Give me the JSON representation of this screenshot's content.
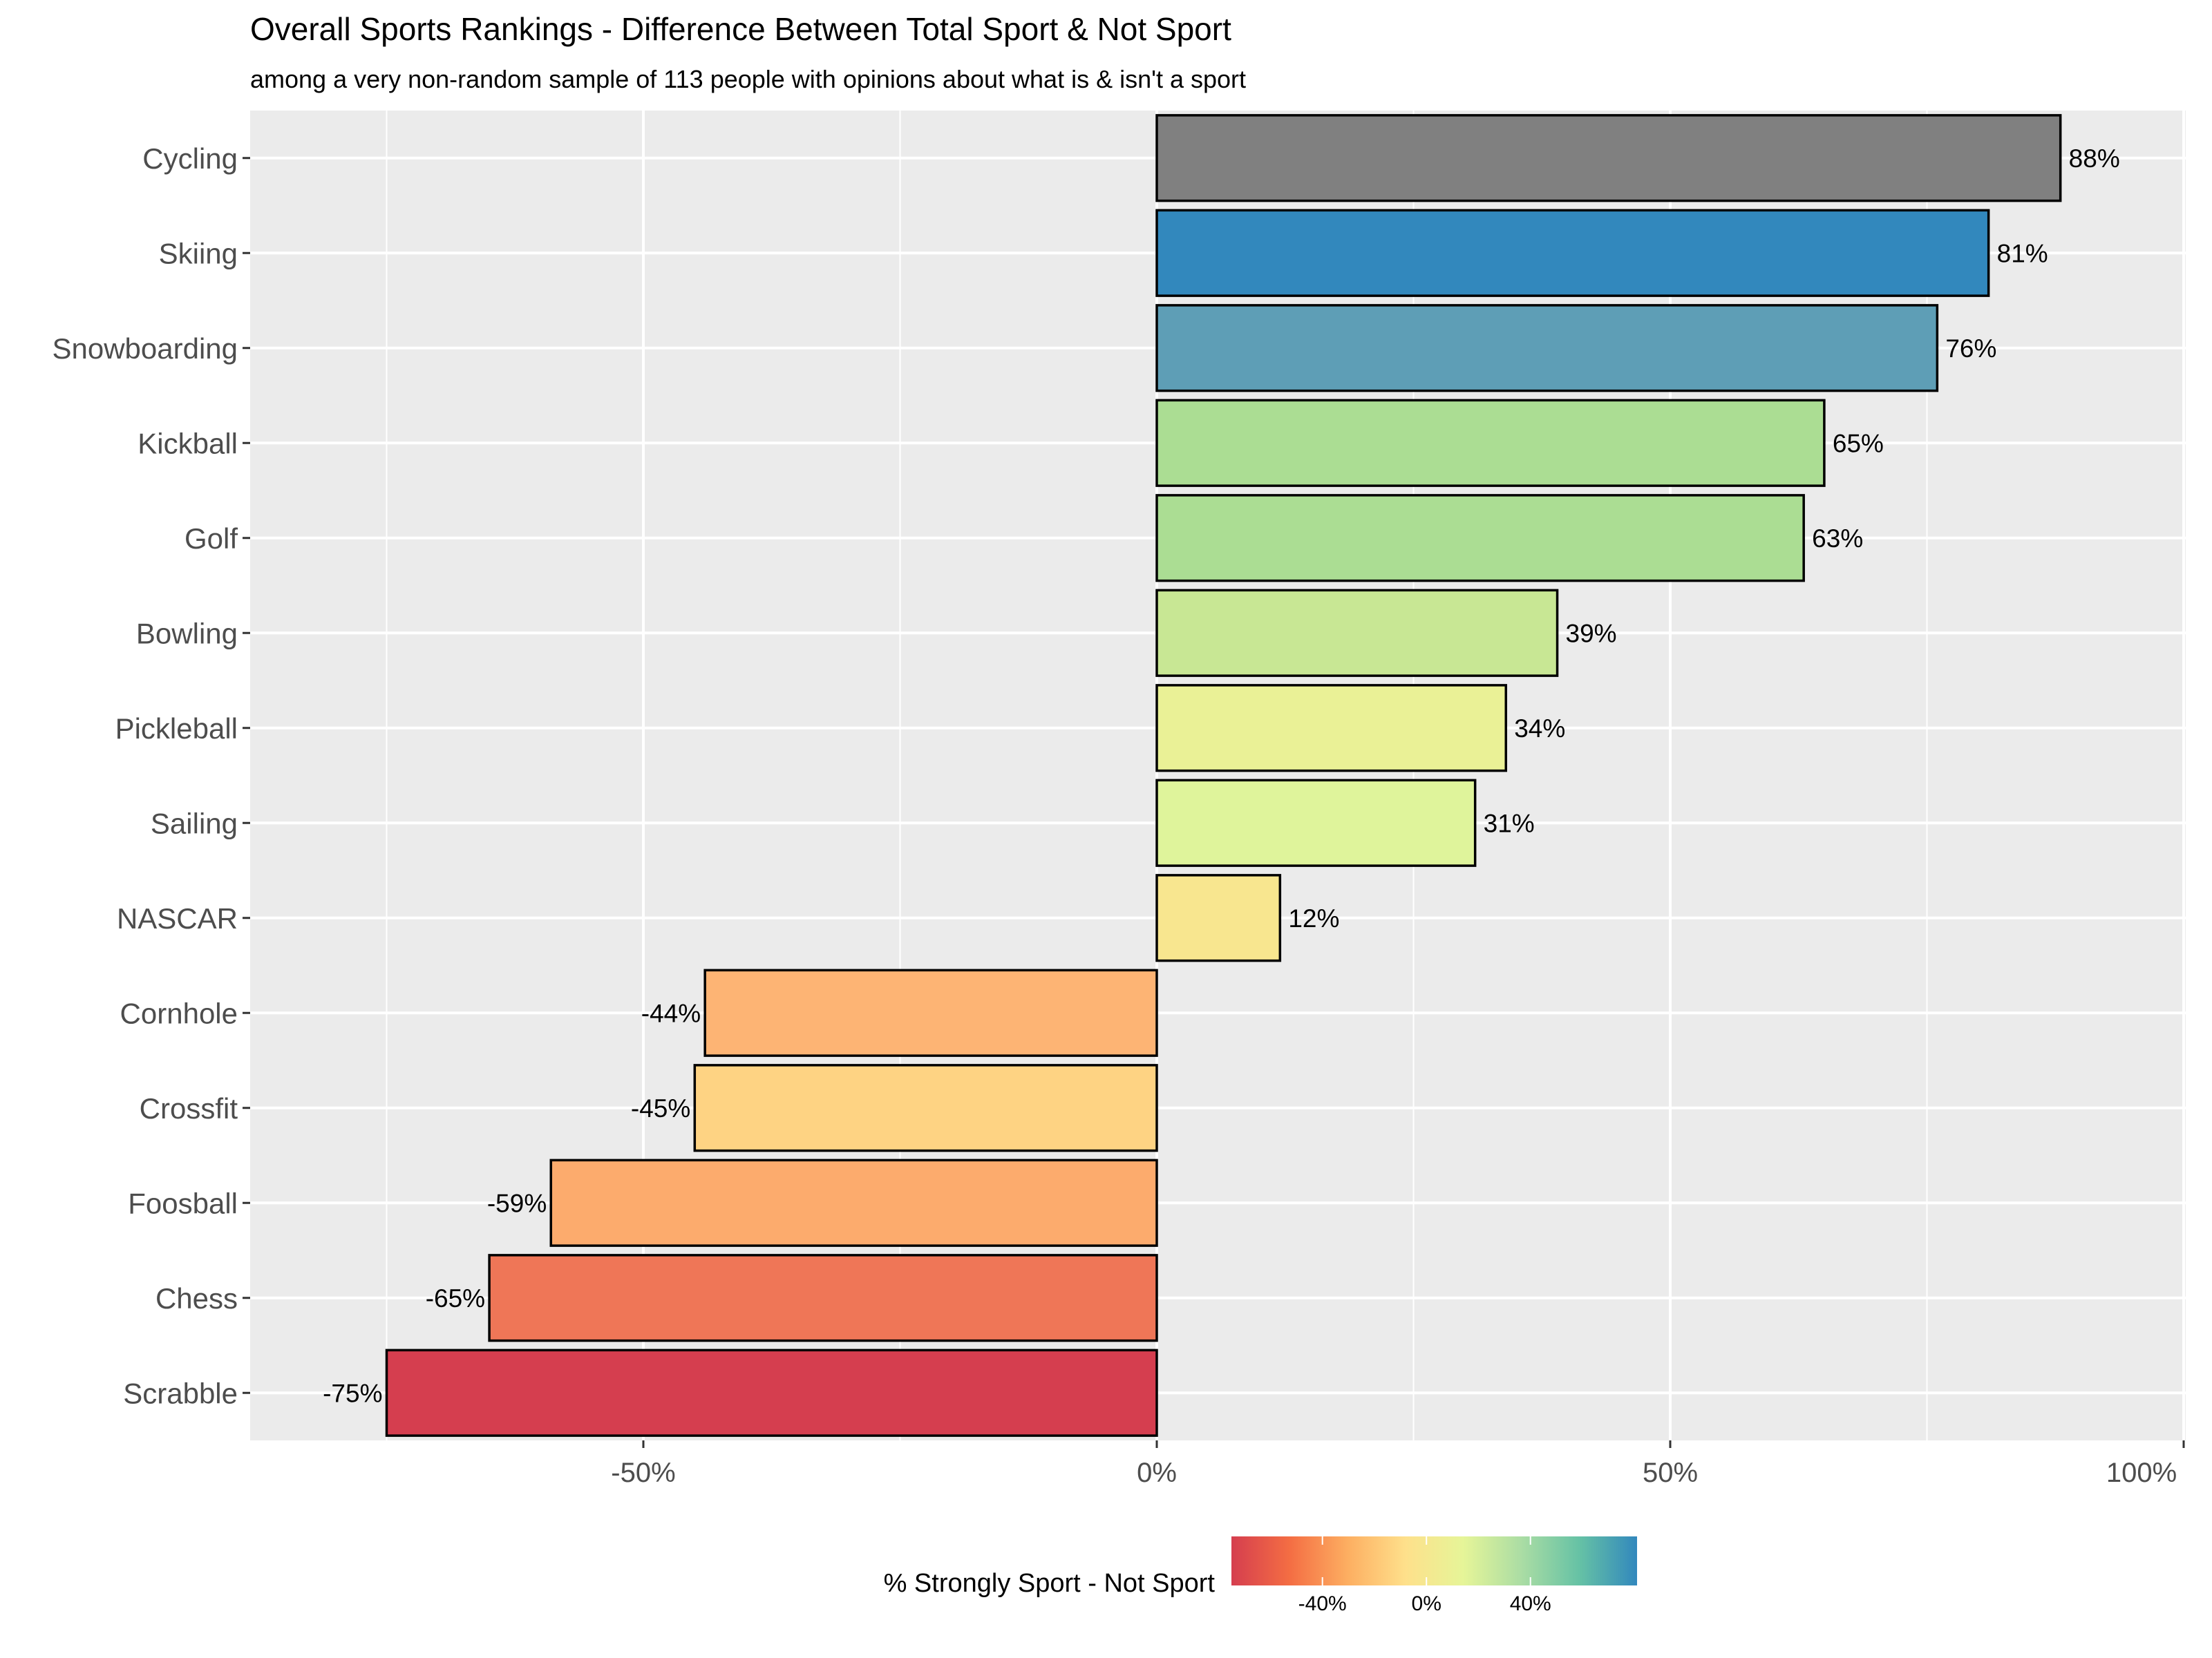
{
  "chart_data": {
    "type": "bar",
    "orientation": "horizontal",
    "title": "Overall Sports Rankings - Difference Between Total Sport & Not Sport",
    "subtitle": "among a very non-random sample of 113 people with opinions about what is & isn't a sport",
    "xlabel": "",
    "ylabel": "",
    "xlim": [
      -0.88,
      1.0
    ],
    "x_ticks": [
      -0.5,
      0,
      0.5,
      1.0
    ],
    "x_tick_labels": [
      "-50%",
      "0%",
      "50%",
      "100%"
    ],
    "grid": true,
    "categories": [
      "Cycling",
      "Skiing",
      "Snowboarding",
      "Kickball",
      "Golf",
      "Bowling",
      "Pickleball",
      "Sailing",
      "NASCAR",
      "Cornhole",
      "Crossfit",
      "Foosball",
      "Chess",
      "Scrabble"
    ],
    "values": [
      0.88,
      0.81,
      0.76,
      0.65,
      0.63,
      0.39,
      0.34,
      0.31,
      0.12,
      -0.44,
      -0.45,
      -0.59,
      -0.65,
      -0.75
    ],
    "value_labels": [
      "88%",
      "81%",
      "76%",
      "65%",
      "63%",
      "39%",
      "34%",
      "31%",
      "12%",
      "-44%",
      "-45%",
      "-59%",
      "-65%",
      "-75%"
    ],
    "bar_colors": [
      "#808080",
      "#3288bd",
      "#5e9eb6",
      "#abdd93",
      "#abdd93",
      "#c8e794",
      "#eaf196",
      "#dff49b",
      "#f8e68f",
      "#fdb474",
      "#fed383",
      "#fcab6d",
      "#ef7657",
      "#d53e4f"
    ],
    "legend": {
      "title": "% Strongly Sport - Not Sport",
      "placement": "bottom",
      "range": [
        -0.75,
        0.81
      ],
      "ticks": [
        -0.4,
        0,
        0.4
      ],
      "tick_labels": [
        "-40%",
        "0%",
        "40%"
      ],
      "gradient_colors": [
        "#d53e4f",
        "#f46d43",
        "#fdae61",
        "#fee08b",
        "#e6f598",
        "#abdda4",
        "#66c2a5",
        "#3288bd"
      ]
    }
  }
}
